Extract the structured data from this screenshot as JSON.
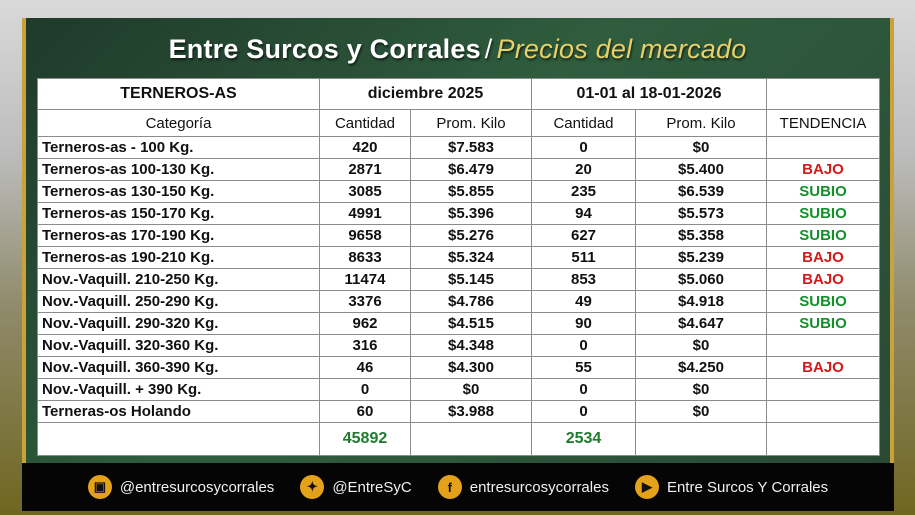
{
  "title": {
    "main": "Entre Surcos y Corrales",
    "separator": "/",
    "sub": "Precios del mercado"
  },
  "table": {
    "group_label": "TERNEROS-AS",
    "period1": "diciembre 2025",
    "period2": "01-01 al 18-01-2026",
    "columns": [
      "Categoría",
      "Cantidad",
      "Prom. Kilo",
      "Cantidad",
      "Prom. Kilo",
      "TENDENCIA"
    ],
    "rows": [
      [
        "Terneros-as - 100 Kg.",
        "420",
        "$7.583",
        "0",
        "$0",
        ""
      ],
      [
        "Terneros-as 100-130 Kg.",
        "2871",
        "$6.479",
        "20",
        "$5.400",
        "BAJO"
      ],
      [
        "Terneros-as 130-150 Kg.",
        "3085",
        "$5.855",
        "235",
        "$6.539",
        "SUBIO"
      ],
      [
        "Terneros-as 150-170 Kg.",
        "4991",
        "$5.396",
        "94",
        "$5.573",
        "SUBIO"
      ],
      [
        "Terneros-as 170-190 Kg.",
        "9658",
        "$5.276",
        "627",
        "$5.358",
        "SUBIO"
      ],
      [
        "Terneros-as 190-210 Kg.",
        "8633",
        "$5.324",
        "511",
        "$5.239",
        "BAJO"
      ],
      [
        "Nov.-Vaquill. 210-250 Kg.",
        "11474",
        "$5.145",
        "853",
        "$5.060",
        "BAJO"
      ],
      [
        "Nov.-Vaquill. 250-290 Kg.",
        "3376",
        "$4.786",
        "49",
        "$4.918",
        "SUBIO"
      ],
      [
        "Nov.-Vaquill. 290-320 Kg.",
        "962",
        "$4.515",
        "90",
        "$4.647",
        "SUBIO"
      ],
      [
        "Nov.-Vaquill. 320-360 Kg.",
        "316",
        "$4.348",
        "0",
        "$0",
        ""
      ],
      [
        "Nov.-Vaquill. 360-390 Kg.",
        "46",
        "$4.300",
        "55",
        "$4.250",
        "BAJO"
      ],
      [
        "Nov.-Vaquill. + 390 Kg.",
        "0",
        "$0",
        "0",
        "$0",
        ""
      ],
      [
        "Terneras-os Holando",
        "60",
        "$3.988",
        "0",
        "$0",
        ""
      ]
    ],
    "totals": {
      "cantidad1": "45892",
      "cantidad2": "2534"
    }
  },
  "footer": {
    "instagram": "@entresurcosycorrales",
    "twitter": "@EntreSyC",
    "facebook": "entresurcosycorrales",
    "youtube": "Entre Surcos Y Corrales"
  },
  "colors": {
    "bajo": "#d11a1a",
    "subio": "#14902a",
    "accent": "#c9a33a"
  },
  "icons": [
    "instagram-icon",
    "twitter-icon",
    "facebook-icon",
    "youtube-icon"
  ]
}
